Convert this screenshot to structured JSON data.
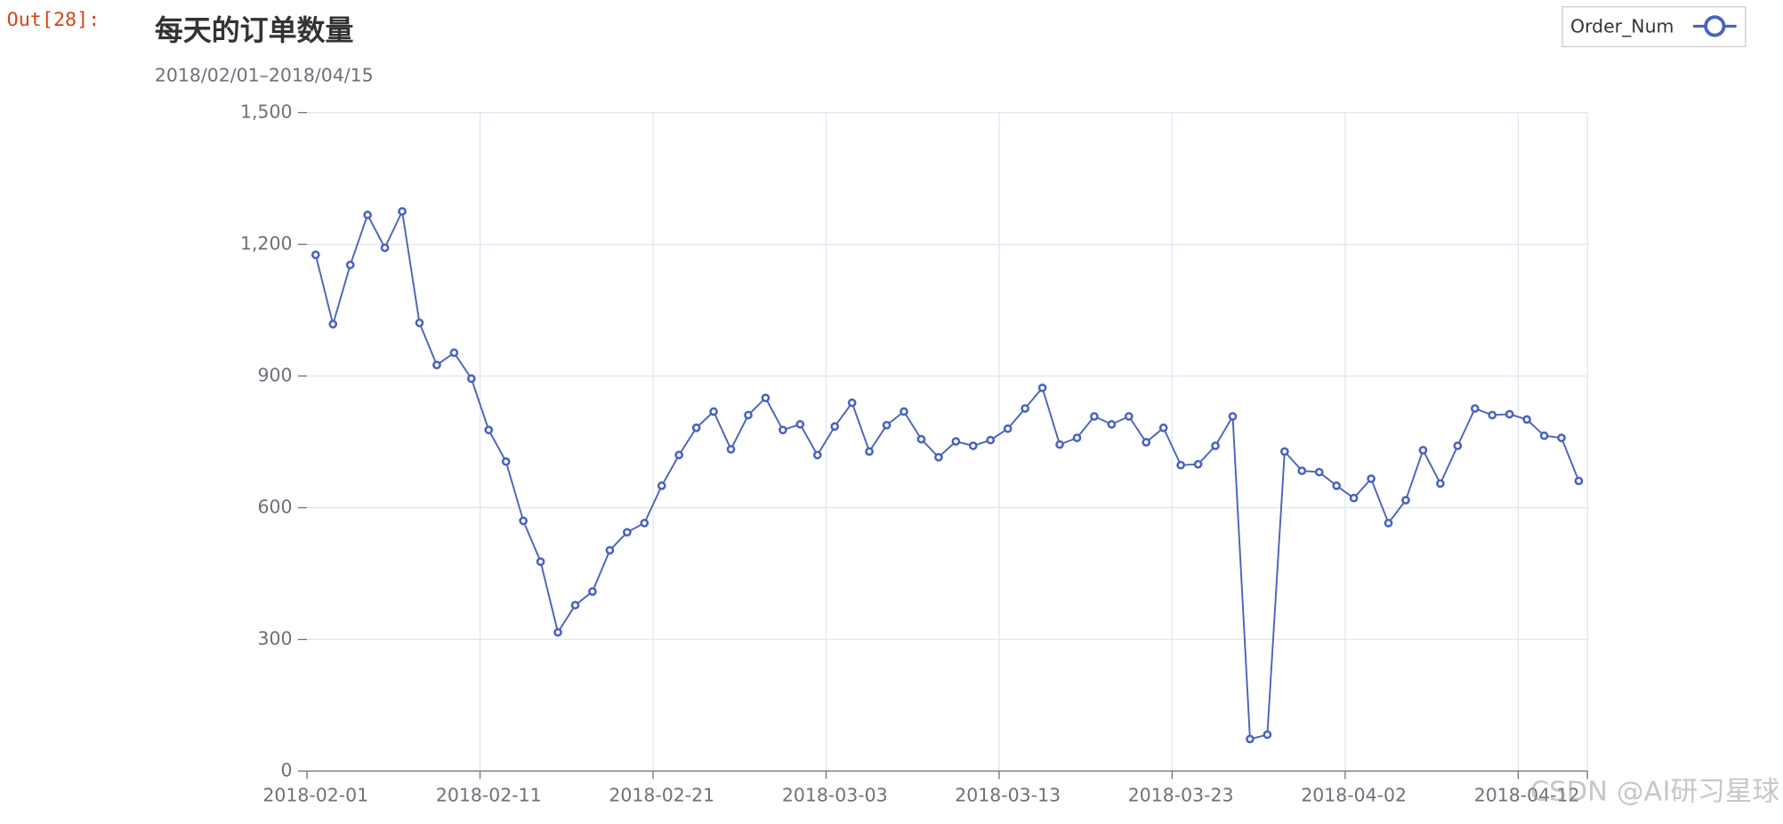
{
  "prompt": "Out[28]:",
  "watermark": "CSDN @AI研习星球",
  "chart_data": {
    "type": "line",
    "title": "每天的订单数量",
    "subtitle": "2018/02/01–2018/04/15",
    "categories": [
      "2018-02-01",
      null,
      null,
      null,
      null,
      null,
      null,
      null,
      null,
      null,
      "2018-02-11",
      null,
      null,
      null,
      null,
      null,
      null,
      null,
      null,
      null,
      "2018-02-21",
      null,
      null,
      null,
      null,
      null,
      null,
      null,
      null,
      null,
      "2018-03-03",
      null,
      null,
      null,
      null,
      null,
      null,
      null,
      null,
      null,
      "2018-03-13",
      null,
      null,
      null,
      null,
      null,
      null,
      null,
      null,
      null,
      "2018-03-23",
      null,
      null,
      null,
      null,
      null,
      null,
      null,
      null,
      null,
      "2018-04-02",
      null,
      null,
      null,
      null,
      null,
      null,
      null,
      null,
      null,
      "2018-04-12",
      null,
      null,
      null
    ],
    "series": [
      {
        "name": "Order_Num",
        "color": "#4a63bd",
        "values": [
          1176,
          1018,
          1153,
          1267,
          1192,
          1275,
          1021,
          925,
          953,
          894,
          777,
          705,
          570,
          477,
          316,
          378,
          409,
          503,
          544,
          565,
          650,
          720,
          782,
          819,
          733,
          811,
          850,
          777,
          790,
          720,
          785,
          839,
          728,
          788,
          819,
          756,
          715,
          751,
          741,
          754,
          780,
          826,
          873,
          744,
          759,
          808,
          790,
          808,
          749,
          782,
          697,
          699,
          741,
          808,
          73,
          83,
          728,
          684,
          681,
          650,
          622,
          666,
          565,
          617,
          731,
          655,
          741,
          826,
          811,
          813,
          801,
          764,
          759,
          661
        ]
      }
    ],
    "ylim": [
      0,
      1500
    ],
    "yticks": [
      0,
      300,
      600,
      900,
      {
        "value": 1200,
        "label": "1,200"
      },
      {
        "value": 1500,
        "label": "1,500"
      }
    ],
    "grid": true,
    "legend": "top-right"
  }
}
